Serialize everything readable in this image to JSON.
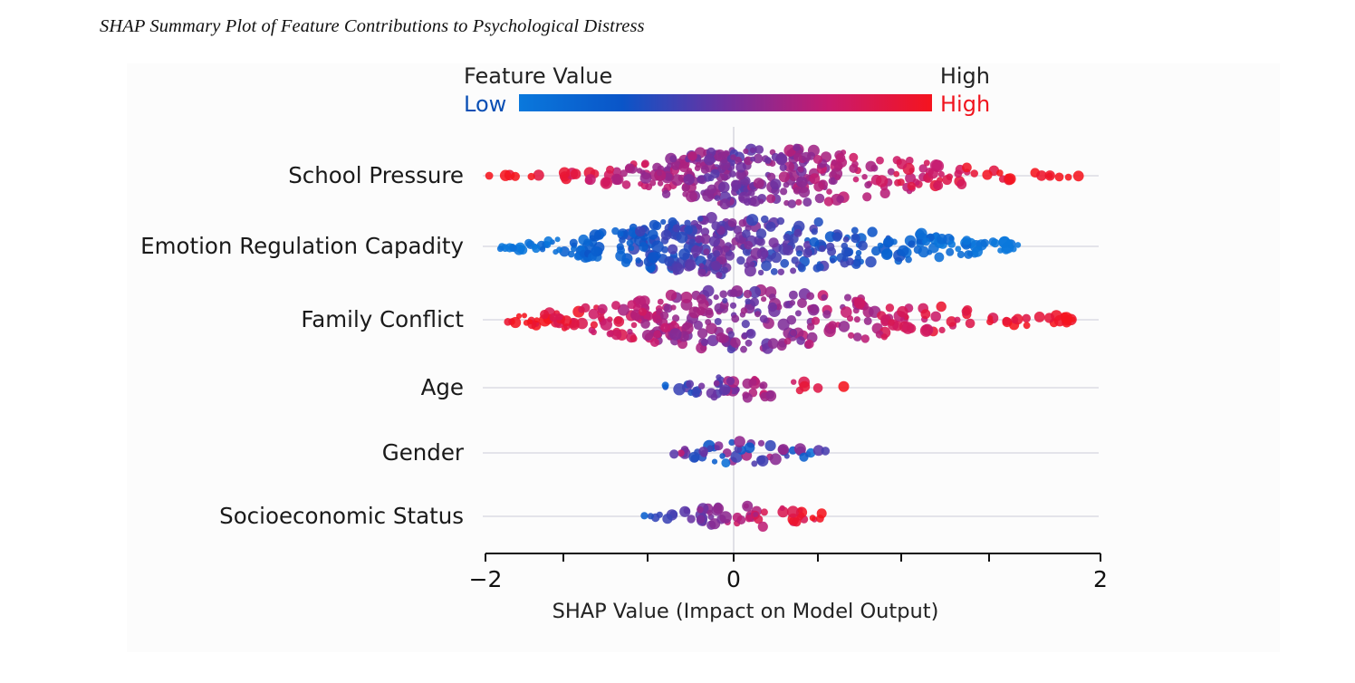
{
  "caption": "SHAP Summary Plot of Feature Contributions to Psychological Distress",
  "chart_data": {
    "type": "scatter",
    "subtype": "beeswarm",
    "title": "SHAP Summary Plot of Feature Contributions to Psychological Distress",
    "xlabel": "SHAP Value (Impact on Model Output)",
    "ylabel": "",
    "xlim": [
      -2,
      2
    ],
    "x_tick_labels": [
      {
        "value": -2,
        "label": "−2"
      },
      {
        "value": 0,
        "label": "0"
      },
      {
        "value": 2,
        "label": "2"
      }
    ],
    "x_minor_ticks": [
      -1.5,
      -1.0,
      0.5,
      1.0,
      1.5
    ],
    "zero_line": true,
    "grid": "horizontal row lines",
    "legend": {
      "title": "Feature Value",
      "high_label_top": "High",
      "low_label": "Low",
      "high_label": "High",
      "placement": "top",
      "colormap": [
        "#0a78dc",
        "#0a55c8",
        "#7030a0",
        "#c81a6e",
        "#f5141e"
      ]
    },
    "features": [
      {
        "name": "School Pressure",
        "shap_min": -1.97,
        "shap_max": 1.88,
        "dense_range": [
          -0.85,
          0.95
        ],
        "peak": 0.15,
        "count": 340,
        "high_value_direction": "positive"
      },
      {
        "name": "Emotion Regulation Capadity",
        "shap_min": -1.88,
        "shap_max": 1.55,
        "dense_range": [
          -1.1,
          1.0
        ],
        "peak": -0.05,
        "count": 380,
        "high_value_direction": "negative"
      },
      {
        "name": "Family Conflict",
        "shap_min": -1.82,
        "shap_max": 1.85,
        "dense_range": [
          -1.2,
          1.05
        ],
        "peak": 0.0,
        "count": 320,
        "high_value_direction": "positive"
      },
      {
        "name": "Age",
        "shap_min": -0.55,
        "shap_max": 0.6,
        "dense_range": [
          -0.4,
          0.4
        ],
        "peak": 0.0,
        "count": 50,
        "high_value_direction": "positive"
      },
      {
        "name": "Gender",
        "shap_min": -0.48,
        "shap_max": 0.5,
        "dense_range": [
          -0.35,
          0.35
        ],
        "peak": 0.0,
        "count": 48,
        "high_value_direction": "mixed"
      },
      {
        "name": "Socioeconomic Status",
        "shap_min": -0.72,
        "shap_max": 0.48,
        "dense_range": [
          -0.45,
          0.35
        ],
        "peak": 0.0,
        "count": 55,
        "high_value_direction": "positive"
      }
    ]
  }
}
